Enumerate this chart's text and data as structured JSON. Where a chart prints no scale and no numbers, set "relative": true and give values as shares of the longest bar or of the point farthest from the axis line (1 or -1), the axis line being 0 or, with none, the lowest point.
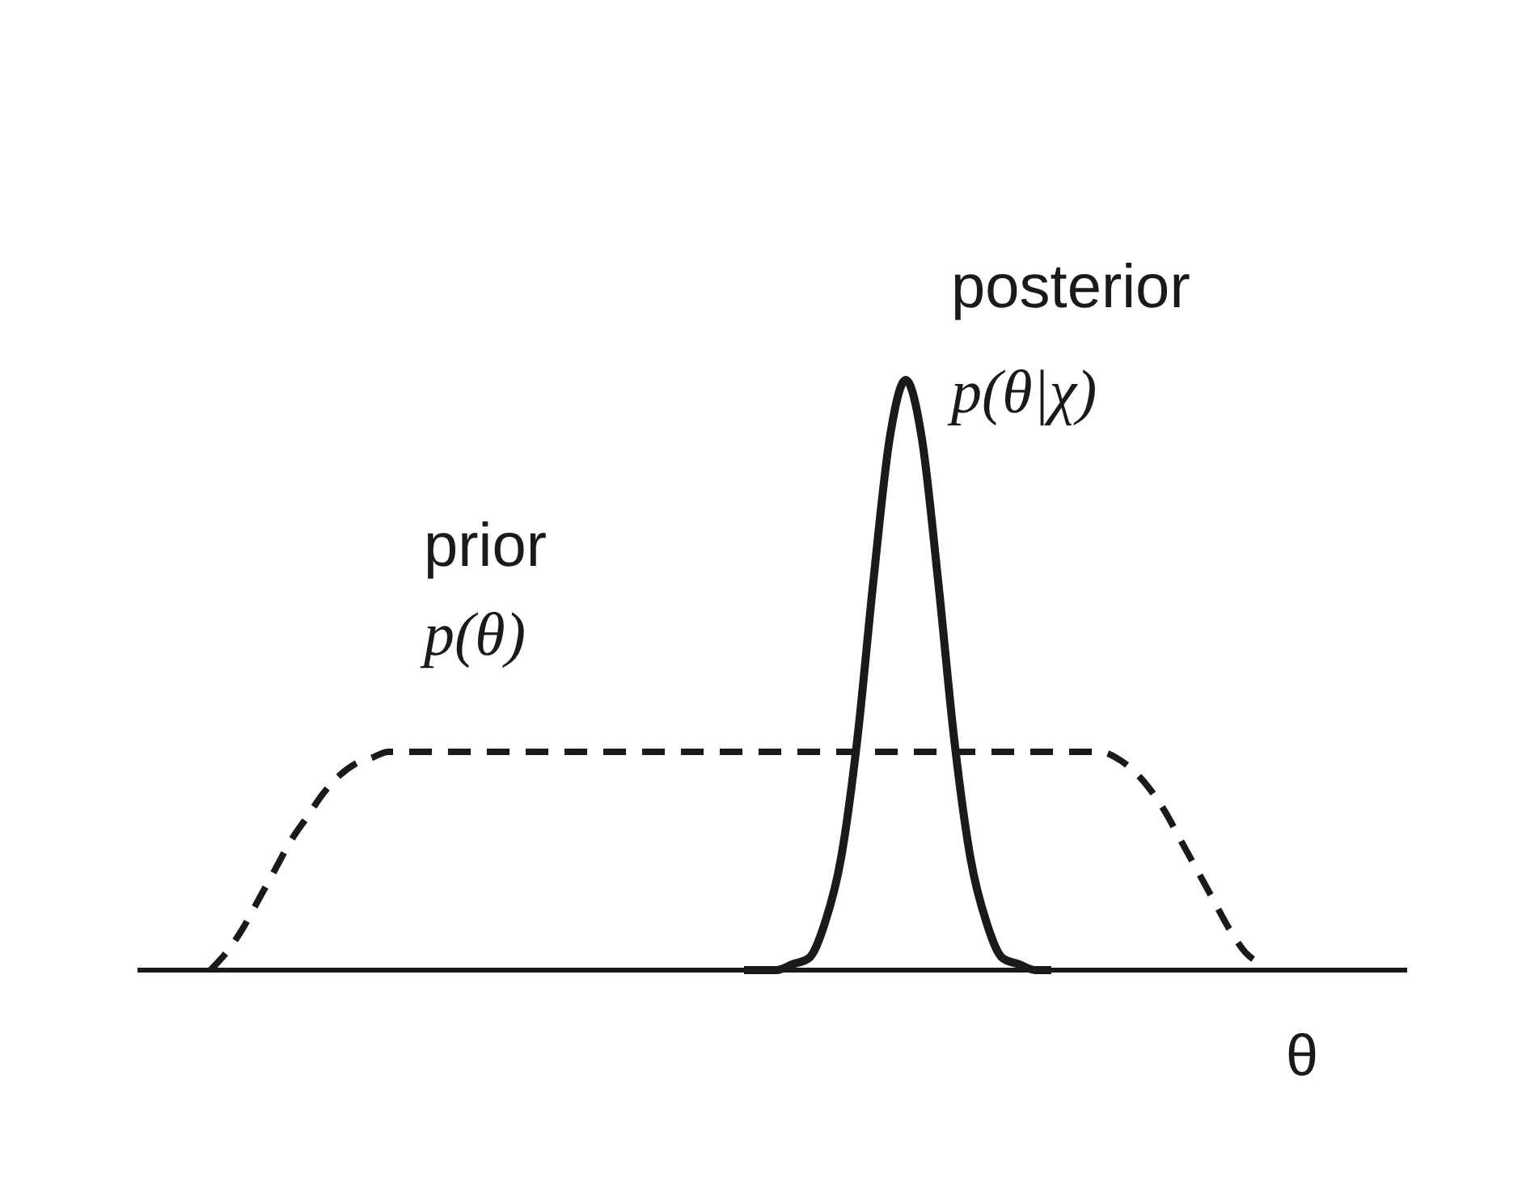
{
  "chart_data": {
    "type": "line",
    "relative": true,
    "xlabel": "θ",
    "categories": [
      null,
      null,
      null,
      null,
      null,
      null,
      null,
      null,
      null,
      null,
      null,
      null,
      null,
      null,
      null,
      null,
      null,
      null,
      null,
      null,
      null,
      null,
      null,
      null,
      null,
      null,
      null,
      null,
      null,
      null,
      null,
      null,
      null,
      null,
      null,
      null,
      null,
      null,
      null,
      null,
      null,
      null,
      null,
      null,
      null,
      null,
      null,
      null,
      null,
      null,
      null,
      null,
      null,
      null,
      null,
      null,
      null,
      null,
      null,
      null,
      null,
      null,
      null,
      null,
      null,
      null,
      null,
      null,
      null,
      null,
      null,
      null,
      null,
      null,
      null,
      null,
      null,
      null,
      null
    ],
    "series": [
      {
        "name": "prior",
        "color": "#1a1a1a",
        "line_style": "dashed",
        "values": [
          null,
          null,
          null,
          null,
          0,
          0.03,
          0.07,
          0.12,
          0.17,
          0.22,
          0.26,
          0.3,
          0.33,
          0.35,
          0.36,
          0.37,
          0.37,
          0.37,
          0.37,
          0.37,
          0.37,
          0.37,
          0.37,
          0.37,
          0.37,
          0.37,
          0.37,
          0.37,
          0.37,
          0.37,
          0.37,
          0.37,
          0.37,
          0.37,
          0.37,
          0.37,
          0.37,
          0.37,
          0.37,
          0.37,
          0.37,
          0.37,
          0.37,
          0.37,
          0.37,
          0.37,
          0.37,
          0.37,
          0.37,
          0.37,
          0.37,
          0.37,
          0.37,
          0.37,
          0.37,
          0.37,
          0.37,
          0.37,
          0.37,
          0.37,
          0.36,
          0.34,
          0.31,
          0.27,
          0.22,
          0.17,
          0.12,
          0.07,
          0.03,
          0.01,
          null,
          null,
          null,
          null,
          null,
          null,
          null,
          null,
          null
        ]
      },
      {
        "name": "posterior",
        "color": "#1a1a1a",
        "line_style": "solid",
        "values": [
          null,
          null,
          null,
          null,
          null,
          null,
          null,
          null,
          null,
          null,
          null,
          null,
          null,
          null,
          null,
          null,
          null,
          null,
          null,
          null,
          null,
          null,
          null,
          null,
          null,
          null,
          null,
          null,
          null,
          null,
          null,
          null,
          null,
          null,
          null,
          null,
          null,
          0,
          0,
          0,
          0.01,
          0.02,
          0.08,
          0.19,
          0.39,
          0.66,
          0.9,
          1,
          0.9,
          0.66,
          0.39,
          0.19,
          0.08,
          0.02,
          0.01,
          0,
          0,
          null,
          null,
          null,
          null,
          null,
          null,
          null,
          null,
          null,
          null,
          null,
          null,
          null,
          null,
          null,
          null,
          null,
          null,
          null,
          null,
          null,
          null
        ]
      }
    ],
    "annotations": [
      "p(θ)",
      "p(θ|χ)"
    ]
  }
}
